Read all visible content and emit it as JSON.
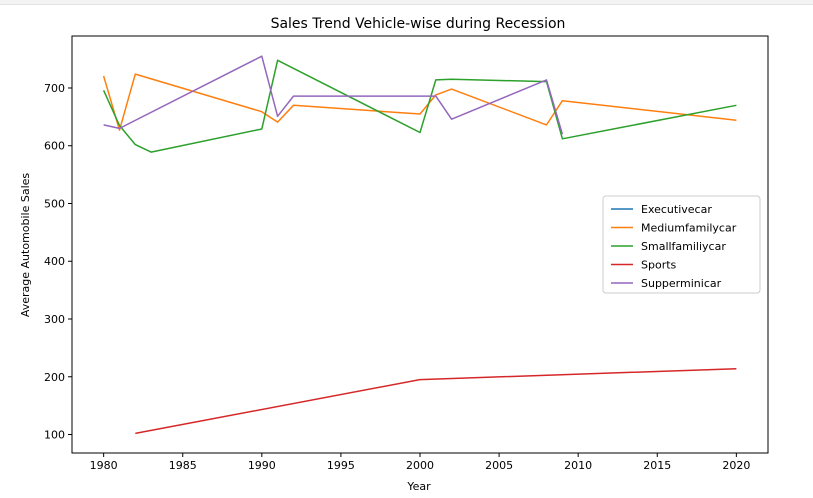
{
  "chart_data": {
    "type": "line",
    "title": "Sales Trend Vehicle-wise during Recession",
    "xlabel": "Year",
    "ylabel": "Average Automobile Sales",
    "xlim": [
      1978,
      2022
    ],
    "ylim": [
      68,
      790
    ],
    "xticks": [
      1980,
      1985,
      1990,
      1995,
      2000,
      2005,
      2010,
      2015,
      2020
    ],
    "yticks": [
      100,
      200,
      300,
      400,
      500,
      600,
      700
    ],
    "grid": false,
    "legend_position": "center-right",
    "series": [
      {
        "name": "Executivecar",
        "color": "#1f77b4",
        "points": []
      },
      {
        "name": "Mediumfamilycar",
        "color": "#ff7f0e",
        "points": [
          [
            1980,
            721
          ],
          [
            1981,
            627
          ],
          [
            1982,
            724
          ],
          [
            1990,
            659
          ],
          [
            1991,
            641
          ],
          [
            1992,
            670
          ],
          [
            2000,
            655
          ],
          [
            2001,
            688
          ],
          [
            2002,
            698
          ],
          [
            2008,
            636
          ],
          [
            2009,
            678
          ],
          [
            2020,
            644
          ]
        ]
      },
      {
        "name": "Smallfamiliycar",
        "color": "#2ca02c",
        "points": [
          [
            1980,
            696
          ],
          [
            1981,
            635
          ],
          [
            1982,
            602
          ],
          [
            1983,
            589
          ],
          [
            1990,
            629
          ],
          [
            1991,
            748
          ],
          [
            2000,
            623
          ],
          [
            2001,
            714
          ],
          [
            2002,
            715
          ],
          [
            2008,
            711
          ],
          [
            2009,
            612
          ],
          [
            2020,
            670
          ]
        ]
      },
      {
        "name": "Sports",
        "color": "#d62728",
        "points": [
          [
            1982,
            102
          ],
          [
            2000,
            195
          ],
          [
            2020,
            214
          ]
        ]
      },
      {
        "name": "Supperminicar",
        "color": "#9467bd",
        "points": [
          [
            1980,
            636
          ],
          [
            1981,
            630
          ],
          [
            1990,
            755
          ],
          [
            1991,
            651
          ],
          [
            1992,
            686
          ],
          [
            2000,
            686
          ],
          [
            2001,
            686
          ],
          [
            2002,
            646
          ],
          [
            2008,
            714
          ],
          [
            2009,
            620
          ]
        ]
      }
    ]
  }
}
